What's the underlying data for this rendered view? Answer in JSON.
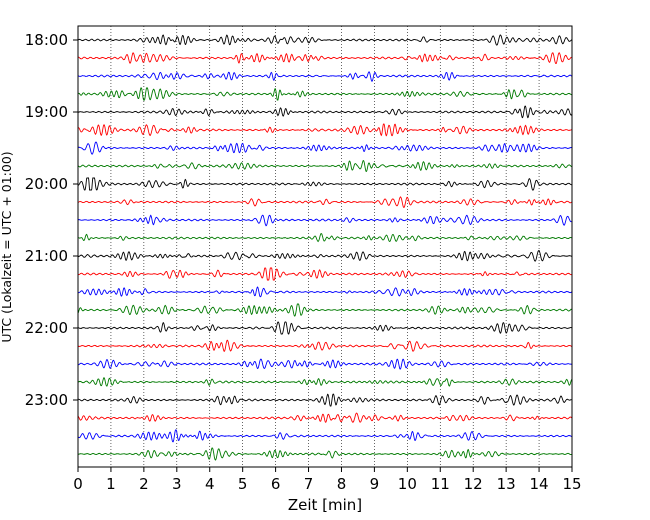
{
  "chart_data": {
    "type": "line",
    "title": "",
    "xlabel": "Zeit  [min]",
    "ylabel": "UTC (Lokalzeit = UTC + 01:00)",
    "xlim": [
      0,
      15
    ],
    "x_ticks": [
      "0",
      "1",
      "2",
      "3",
      "4",
      "5",
      "6",
      "7",
      "8",
      "9",
      "10",
      "11",
      "12",
      "13",
      "14",
      "15"
    ],
    "y_ticks": [
      "18:00",
      "19:00",
      "20:00",
      "21:00",
      "22:00",
      "23:00"
    ],
    "grid": "vertical dotted",
    "trace_interval_min": 15,
    "trace_colors": [
      "#000000",
      "#ff0000",
      "#0000ff",
      "#007a00"
    ],
    "traces_start": "18:00",
    "traces_end": "23:45",
    "signal": "seismogram helicorder"
  }
}
